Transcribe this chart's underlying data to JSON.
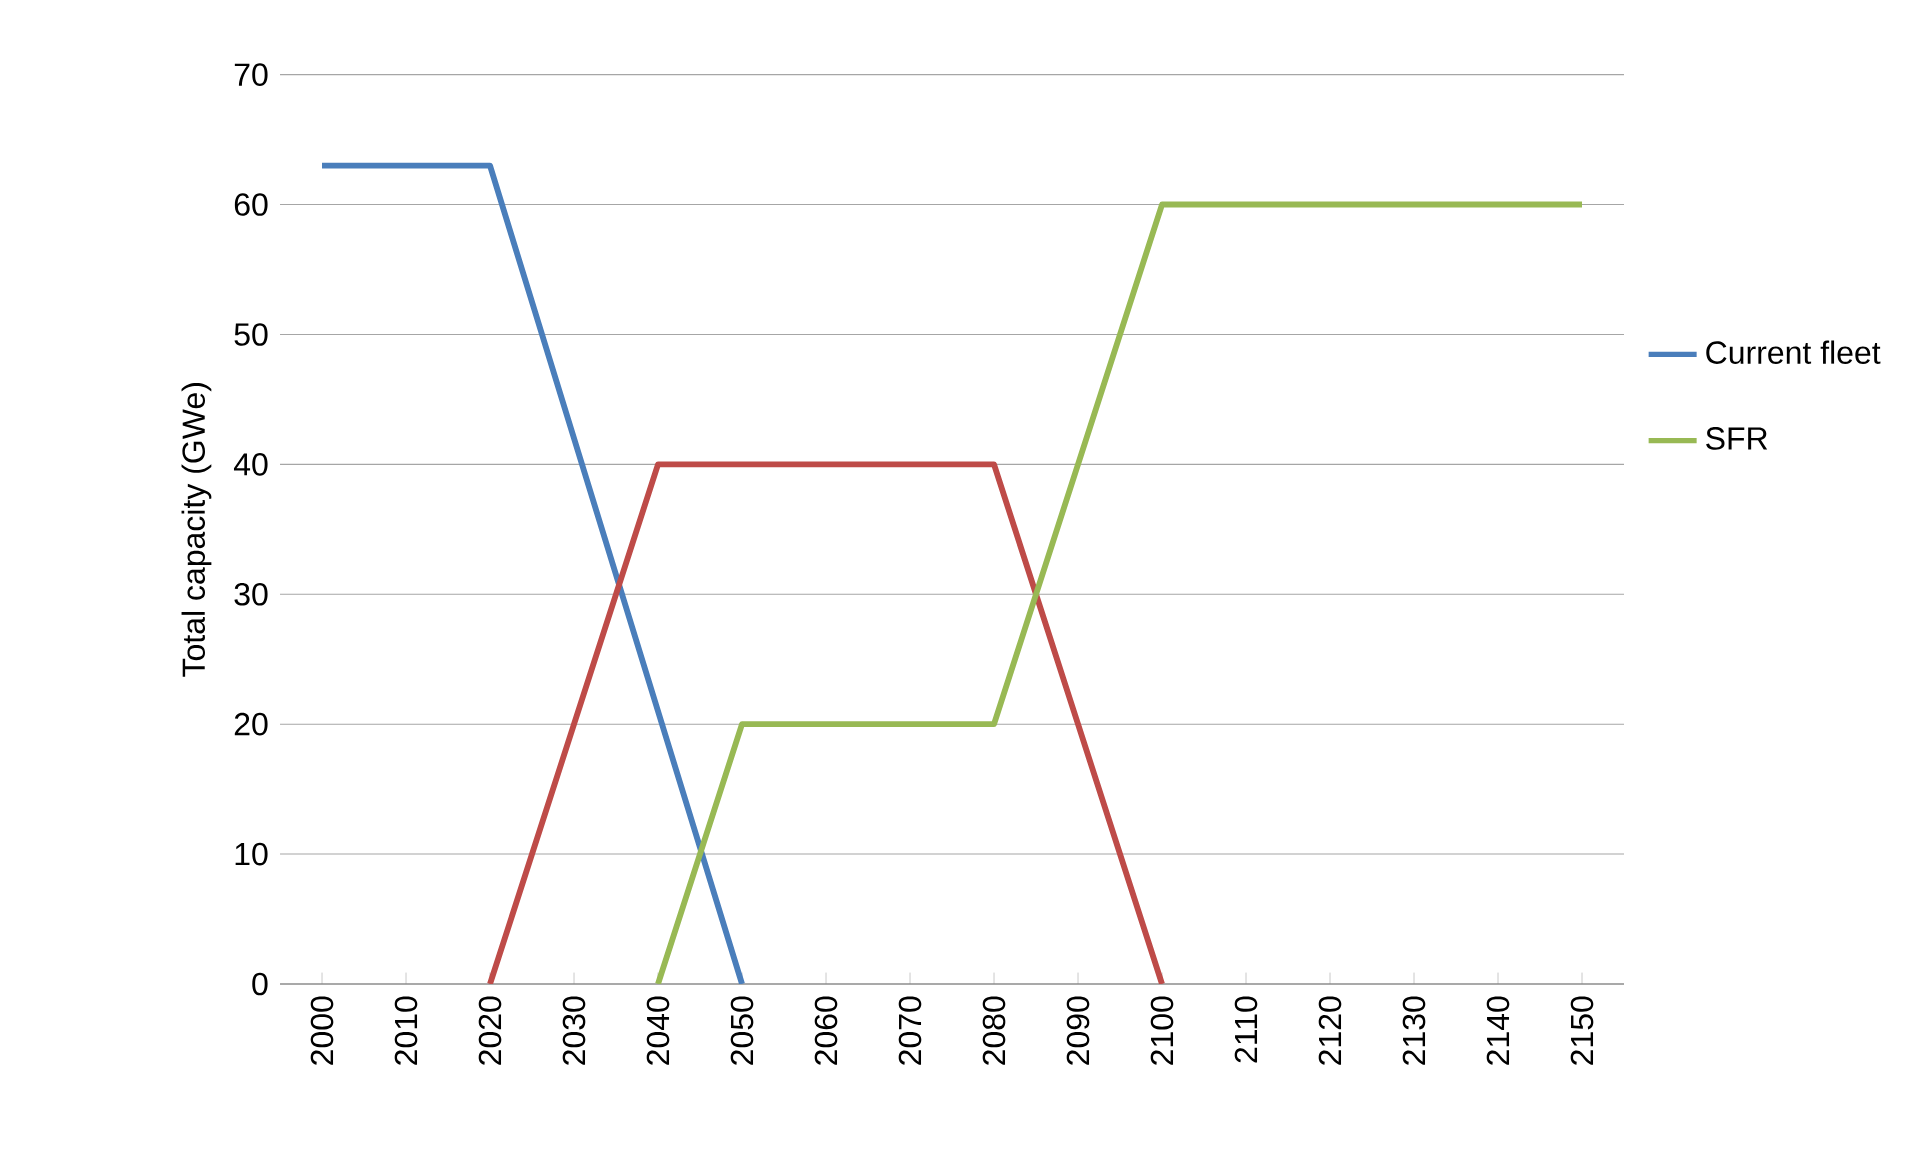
{
  "chart_data": {
    "type": "line",
    "ylabel": "Total capacity (GWe)",
    "categories": [
      "2000",
      "2010",
      "2020",
      "2030",
      "2040",
      "2050",
      "2060",
      "2070",
      "2080",
      "2090",
      "2100",
      "2110",
      "2120",
      "2130",
      "2140",
      "2150"
    ],
    "series": [
      {
        "name": "Current fleet",
        "color": "#4a7ebb",
        "values": [
          63,
          63,
          63,
          42,
          21,
          0,
          null,
          null,
          null,
          null,
          null,
          null,
          null,
          null,
          null,
          null
        ]
      },
      {
        "color": "#be4b48",
        "values": [
          null,
          null,
          0,
          20,
          40,
          40,
          40,
          40,
          40,
          20,
          0,
          null,
          null,
          null,
          null,
          null
        ]
      },
      {
        "name": "SFR",
        "color": "#98b954",
        "values": [
          null,
          null,
          null,
          null,
          0,
          20,
          20,
          20,
          20,
          40,
          60,
          60,
          60,
          60,
          60,
          60
        ]
      }
    ],
    "ylim": [
      0,
      70
    ],
    "yticks": [
      0,
      10,
      20,
      30,
      40,
      50,
      60,
      70
    ],
    "grid": "y",
    "legend": "right",
    "marker": "none",
    "line_style": "solid"
  }
}
